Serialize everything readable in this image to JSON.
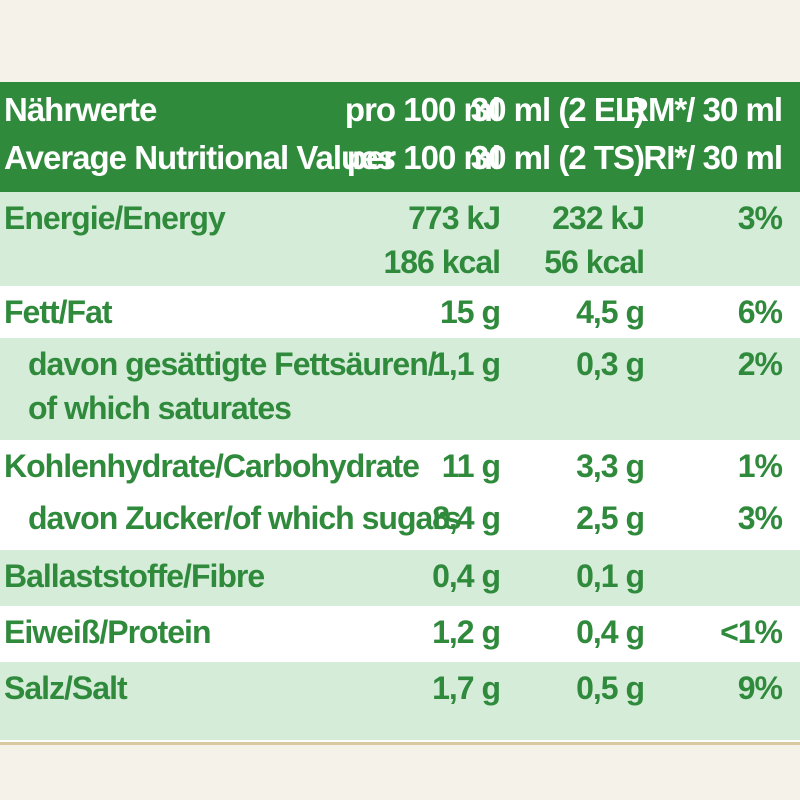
{
  "header": {
    "col0_line1": "Nährwerte",
    "col0_line2": "Average Nutritional Values",
    "col1_line1": "pro 100 ml",
    "col1_line2": "per 100 ml",
    "col2_line1": "30 ml (2 EL)",
    "col2_line2": "30 ml (2 TS)",
    "col3_line1": "RM*/ 30 ml",
    "col3_line2": "RI*/ 30 ml"
  },
  "rows": [
    {
      "name": "Energie/Energy",
      "name2": "",
      "v1": "773 kJ",
      "v1b": "186 kcal",
      "v2": "232 kJ",
      "v2b": "56 kcal",
      "v3": "3%"
    },
    {
      "name": "Fett/Fat",
      "v1": "15 g",
      "v2": "4,5 g",
      "v3": "6%"
    },
    {
      "name": "davon gesättigte Fettsäuren/",
      "name2": "of which saturates",
      "v1": "1,1 g",
      "v2": "0,3 g",
      "v3": "2%"
    },
    {
      "name": "Kohlenhydrate/Carbohydrate",
      "v1": "11 g",
      "v2": "3,3 g",
      "v3": "1%"
    },
    {
      "name": "davon Zucker/of which sugars",
      "v1": "8,4 g",
      "v2": "2,5 g",
      "v3": "3%"
    },
    {
      "name": "Ballaststoffe/Fibre",
      "v1": "0,4 g",
      "v2": "0,1 g",
      "v3": ""
    },
    {
      "name": "Eiweiß/Protein",
      "v1": "1,2 g",
      "v2": "0,4 g",
      "v3": "<1%"
    },
    {
      "name": "Salz/Salt",
      "v1": "1,7 g",
      "v2": "0,5 g",
      "v3": "9%"
    }
  ],
  "colors": {
    "brand_green": "#2f8a3c",
    "band_green": "#d5ecd9",
    "white": "#ffffff"
  }
}
